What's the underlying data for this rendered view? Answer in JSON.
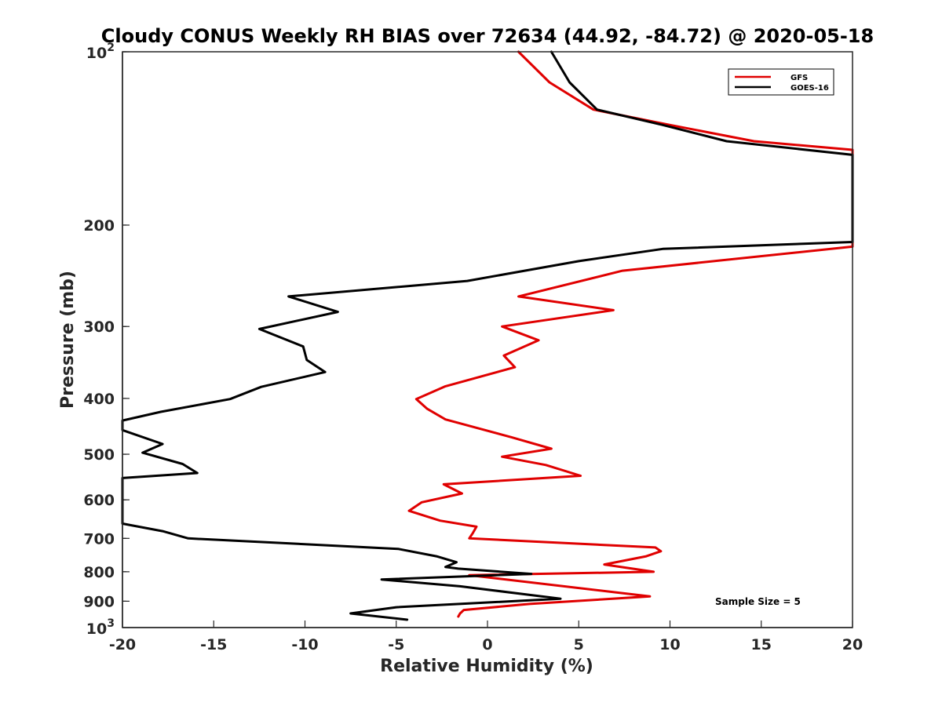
{
  "chart_data": {
    "type": "line",
    "title": "Cloudy CONUS Weekly RH BIAS over 72634 (44.92, -84.72) @ 2020-05-18",
    "xlabel": "Relative Humidity (%)",
    "ylabel": "Pressure (mb)",
    "xlim": [
      -20,
      20
    ],
    "ylim": [
      100,
      1000
    ],
    "y_scale": "log",
    "y_reversed": true,
    "grid": false,
    "x_ticks": [
      -20,
      -15,
      -10,
      -5,
      0,
      5,
      10,
      15,
      20
    ],
    "x_tick_labels": [
      "-20",
      "-15",
      "-10",
      "-5",
      "0",
      "5",
      "10",
      "15",
      "20"
    ],
    "y_ticks": [
      200,
      300,
      400,
      500,
      600,
      700,
      800,
      900
    ],
    "y_tick_labels": [
      "200",
      "300",
      "400",
      "500",
      "600",
      "700",
      "800",
      "900"
    ],
    "y_edge_labels": [
      {
        "value": 100,
        "base": "10",
        "exp": "2"
      },
      {
        "value": 1000,
        "base": "10",
        "exp": "3"
      }
    ],
    "legend": {
      "placement": "top-right"
    },
    "annotation": "Sample Size = 5",
    "series": [
      {
        "name": "GFS",
        "color": "#e00000",
        "points": [
          [
            1.7,
            100
          ],
          [
            3.4,
            113
          ],
          [
            5.8,
            126
          ],
          [
            10.0,
            134
          ],
          [
            14.6,
            143
          ],
          [
            20,
            148
          ],
          [
            20,
            218
          ],
          [
            7.4,
            240
          ],
          [
            1.7,
            266
          ],
          [
            6.9,
            281
          ],
          [
            0.8,
            300
          ],
          [
            2.8,
            317
          ],
          [
            0.9,
            337
          ],
          [
            1.5,
            353
          ],
          [
            -2.3,
            381
          ],
          [
            -3.9,
            401
          ],
          [
            -3.3,
            417
          ],
          [
            -2.3,
            435
          ],
          [
            1.3,
            467
          ],
          [
            3.5,
            489
          ],
          [
            0.8,
            505
          ],
          [
            3.2,
            522
          ],
          [
            5.1,
            545
          ],
          [
            -2.4,
            564
          ],
          [
            -1.4,
            585
          ],
          [
            -3.6,
            606
          ],
          [
            -4.3,
            627
          ],
          [
            -2.6,
            652
          ],
          [
            -0.6,
            668
          ],
          [
            -0.8,
            685
          ],
          [
            -1.0,
            700
          ],
          [
            9.2,
            726
          ],
          [
            9.5,
            737
          ],
          [
            8.7,
            752
          ],
          [
            6.4,
            777
          ],
          [
            9.1,
            800
          ],
          [
            -1.0,
            811
          ],
          [
            8.9,
            883
          ],
          [
            2.3,
            910
          ],
          [
            -1.3,
            932
          ],
          [
            -1.5,
            945
          ],
          [
            -1.6,
            957
          ]
        ]
      },
      {
        "name": "GOES-16",
        "color": "#000000",
        "points": [
          [
            3.5,
            100
          ],
          [
            4.5,
            113
          ],
          [
            6.0,
            126
          ],
          [
            9.6,
            134
          ],
          [
            13.1,
            143
          ],
          [
            20,
            151
          ],
          [
            20,
            214
          ],
          [
            9.6,
            220
          ],
          [
            5.0,
            231
          ],
          [
            -1.1,
            250
          ],
          [
            -10.9,
            266
          ],
          [
            -8.2,
            283
          ],
          [
            -12.5,
            303
          ],
          [
            -10.1,
            325
          ],
          [
            -9.9,
            343
          ],
          [
            -8.9,
            360
          ],
          [
            -12.4,
            382
          ],
          [
            -14.1,
            401
          ],
          [
            -17.9,
            422
          ],
          [
            -20,
            437
          ],
          [
            -20,
            454
          ],
          [
            -17.8,
            480
          ],
          [
            -18.9,
            497
          ],
          [
            -16.7,
            520
          ],
          [
            -15.9,
            539
          ],
          [
            -20,
            550
          ],
          [
            -20,
            660
          ],
          [
            -17.8,
            680
          ],
          [
            -16.4,
            700
          ],
          [
            -4.9,
            730
          ],
          [
            -2.8,
            752
          ],
          [
            -1.7,
            770
          ],
          [
            -2.3,
            785
          ],
          [
            -1.6,
            790
          ],
          [
            2.4,
            807
          ],
          [
            -5.8,
            825
          ],
          [
            -1.5,
            848
          ],
          [
            4.0,
            891
          ],
          [
            -5.0,
            922
          ],
          [
            -7.5,
            945
          ],
          [
            -4.4,
            969
          ]
        ]
      }
    ]
  }
}
